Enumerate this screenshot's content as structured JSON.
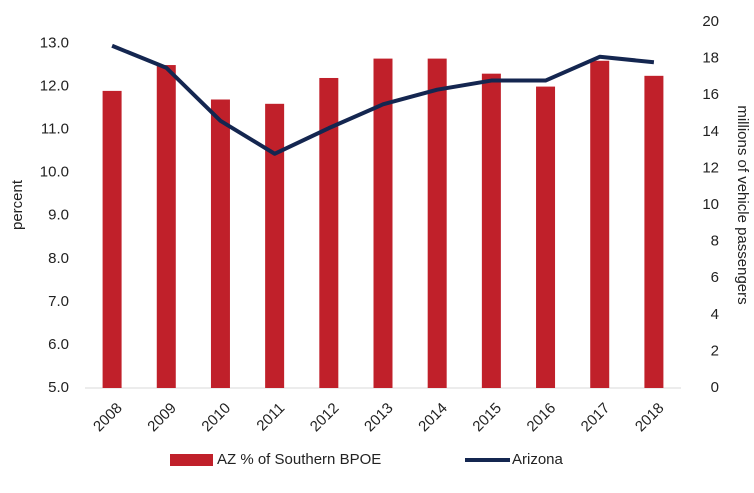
{
  "chart_data": {
    "type": "bar_line",
    "categories": [
      "2008",
      "2009",
      "2010",
      "2011",
      "2012",
      "2013",
      "2014",
      "2015",
      "2016",
      "2017",
      "2018"
    ],
    "series": [
      {
        "name": "AZ % of Southern BPOE",
        "type": "bar",
        "color": "#c0202a",
        "values": [
          11.9,
          12.5,
          11.7,
          11.6,
          12.2,
          12.65,
          12.65,
          12.3,
          12.0,
          12.6,
          12.25
        ]
      },
      {
        "name": "Arizona",
        "type": "line",
        "axis": "y2",
        "color": "#142650",
        "values": [
          18.7,
          17.5,
          14.6,
          12.8,
          14.2,
          15.5,
          16.3,
          16.8,
          16.8,
          18.1,
          17.8
        ]
      }
    ],
    "ylabel": "percent",
    "y2label": "millions of vehicle passengers",
    "ylim": [
      5,
      13.5
    ],
    "yticks": [
      {
        "value": 5,
        "label": "5.0"
      },
      {
        "value": 6,
        "label": "6.0"
      },
      {
        "value": 7,
        "label": "7.0"
      },
      {
        "value": 8,
        "label": "8.0"
      },
      {
        "value": 9,
        "label": "9.0"
      },
      {
        "value": 10,
        "label": "10.0"
      },
      {
        "value": 11,
        "label": "11.0"
      },
      {
        "value": 12,
        "label": "12.0"
      },
      {
        "value": 13,
        "label": "13.0"
      }
    ],
    "y2lim": [
      0,
      20
    ],
    "y2ticks": [
      0,
      2,
      4,
      6,
      8,
      10,
      12,
      14,
      16,
      18,
      20
    ],
    "grid": false,
    "legend": "bottom"
  }
}
